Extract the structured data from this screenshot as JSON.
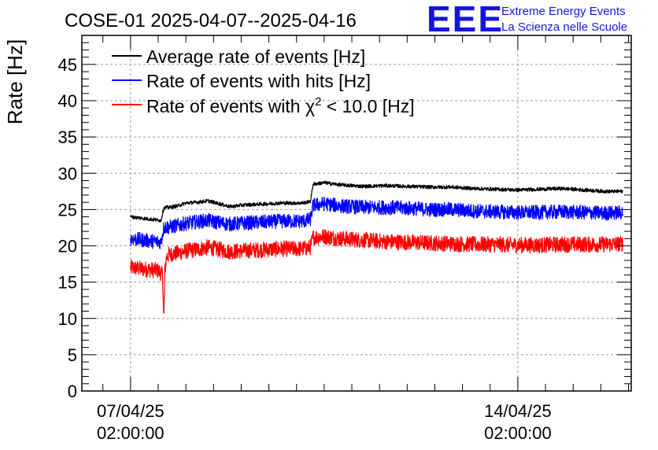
{
  "chart_data": {
    "type": "line",
    "title": "COSE-01 2025-04-07--2025-04-16",
    "ylabel": "Rate [Hz]",
    "xlabel": "",
    "ylim": [
      0,
      49
    ],
    "yticks": [
      0,
      5,
      10,
      15,
      20,
      25,
      30,
      35,
      40,
      45
    ],
    "ytick_labels": [
      "0",
      "5",
      "10",
      "15",
      "20",
      "25",
      "30",
      "35",
      "40",
      "45"
    ],
    "x_unit": "days since 07/04/25 02:00:00",
    "xlim": [
      -0.88,
      9.05
    ],
    "xticks": [
      {
        "x": 0,
        "date": "07/04/25",
        "time": "02:00:00"
      },
      {
        "x": 7,
        "date": "14/04/25",
        "time": "02:00:00"
      }
    ],
    "grid": true,
    "legend_position": "top-left",
    "series": [
      {
        "name": "Average rate of events [Hz]",
        "color": "#000000",
        "noise": 0.25,
        "x": [
          0,
          0.55,
          0.6,
          0.65,
          0.7,
          0.85,
          1.0,
          1.2,
          1.4,
          1.6,
          1.8,
          2.0,
          2.2,
          2.5,
          2.7,
          2.9,
          3.1,
          3.25,
          3.3,
          3.5,
          3.8,
          4.2,
          4.6,
          5.0,
          5.4,
          5.8,
          6.2,
          6.6,
          7.0,
          7.4,
          7.8,
          8.2,
          8.6,
          8.9
        ],
        "y": [
          24.0,
          23.5,
          25.2,
          25.3,
          25.3,
          25.5,
          25.9,
          26.0,
          26.2,
          25.8,
          25.4,
          25.6,
          25.7,
          25.8,
          25.9,
          25.9,
          25.9,
          26.1,
          28.5,
          28.7,
          28.4,
          28.2,
          28.3,
          28.2,
          28.1,
          28.1,
          27.9,
          27.8,
          27.7,
          27.8,
          27.9,
          27.7,
          27.5,
          27.5
        ]
      },
      {
        "name": "Rate of events with hits [Hz]",
        "color": "#0000ff",
        "noise": 1.0,
        "x": [
          0,
          0.55,
          0.6,
          0.65,
          0.7,
          0.85,
          1.0,
          1.2,
          1.4,
          1.6,
          1.8,
          2.0,
          2.2,
          2.5,
          2.7,
          2.9,
          3.1,
          3.25,
          3.3,
          3.5,
          3.8,
          4.2,
          4.6,
          5.0,
          5.4,
          5.8,
          6.2,
          6.6,
          7.0,
          7.4,
          7.8,
          8.2,
          8.6,
          8.9
        ],
        "y": [
          21.0,
          20.5,
          22.5,
          22.6,
          22.6,
          22.8,
          23.1,
          23.3,
          23.5,
          23.2,
          23.0,
          23.1,
          23.2,
          23.3,
          23.4,
          23.4,
          23.4,
          23.6,
          25.6,
          25.8,
          25.5,
          25.3,
          25.3,
          25.2,
          25.0,
          25.0,
          24.8,
          24.7,
          24.6,
          24.6,
          24.7,
          24.6,
          24.5,
          24.6
        ]
      },
      {
        "name": "Rate of events with χ² < 10.0 [Hz]",
        "legend_parts": [
          "Rate of events with ",
          "χ",
          "2",
          " < 10.0 [Hz]"
        ],
        "color": "#ff0000",
        "noise": 1.1,
        "x": [
          0,
          0.5,
          0.58,
          0.6,
          0.62,
          0.65,
          0.7,
          0.85,
          1.0,
          1.2,
          1.4,
          1.6,
          1.8,
          2.0,
          2.2,
          2.5,
          2.7,
          2.9,
          3.1,
          3.25,
          3.3,
          3.5,
          3.8,
          4.2,
          4.6,
          5.0,
          5.4,
          5.8,
          6.2,
          6.6,
          7.0,
          7.4,
          7.8,
          8.2,
          8.6,
          8.9
        ],
        "y": [
          17.0,
          16.6,
          16.0,
          9.6,
          16.5,
          18.5,
          18.8,
          19.0,
          19.3,
          19.5,
          19.8,
          19.5,
          19.2,
          19.3,
          19.4,
          19.5,
          19.6,
          19.6,
          19.6,
          19.8,
          21.2,
          21.3,
          21.0,
          20.8,
          20.6,
          20.5,
          20.4,
          20.3,
          20.2,
          20.2,
          20.1,
          20.1,
          20.2,
          20.2,
          20.2,
          20.3
        ]
      }
    ]
  },
  "logo": {
    "mark": "EEE",
    "line1": "Extreme Energy Events",
    "line2": "La Scienza nelle Scuole"
  }
}
